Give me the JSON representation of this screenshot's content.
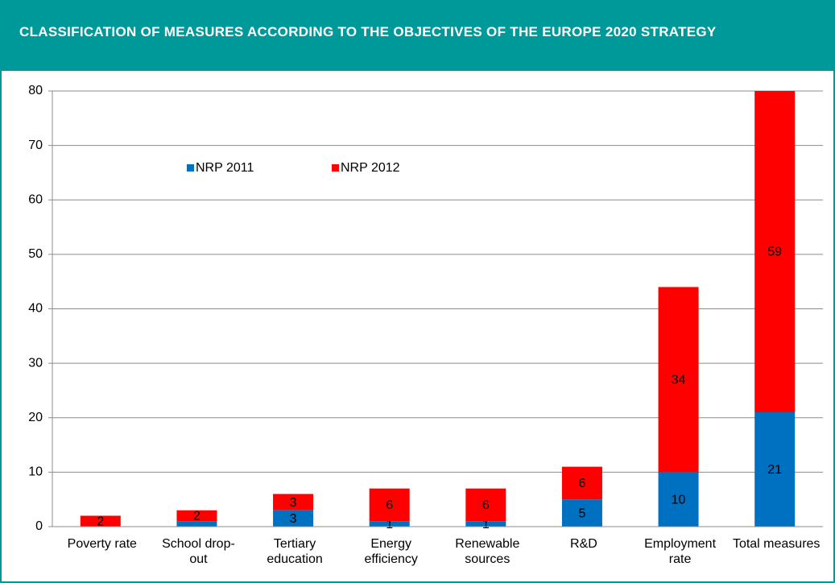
{
  "chart_data": {
    "type": "stacked_bar",
    "title": "CLASSIFICATION OF MEASURES ACCORDING TO THE OBJECTIVES OF THE EUROPE 2020 STRATEGY",
    "categories": [
      "Poverty rate",
      "School drop-out",
      "Tertiary education",
      "Energy efficiency",
      "Renewable sources",
      "R&D",
      "Employment rate",
      "Total measures"
    ],
    "series": [
      {
        "name": "NRP 2011",
        "color": "#0070c0",
        "values": [
          0,
          1,
          3,
          1,
          1,
          5,
          10,
          21
        ],
        "value_labels": [
          null,
          null,
          "3",
          "1",
          "1",
          "5",
          "10",
          "21"
        ]
      },
      {
        "name": "NRP 2012",
        "color": "#ff0000",
        "values": [
          2,
          2,
          3,
          6,
          6,
          6,
          34,
          59
        ]
      }
    ],
    "ylim": [
      0,
      80
    ],
    "yticks": [
      0,
      10,
      20,
      30,
      40,
      50,
      60,
      70,
      80
    ],
    "grid": true
  }
}
